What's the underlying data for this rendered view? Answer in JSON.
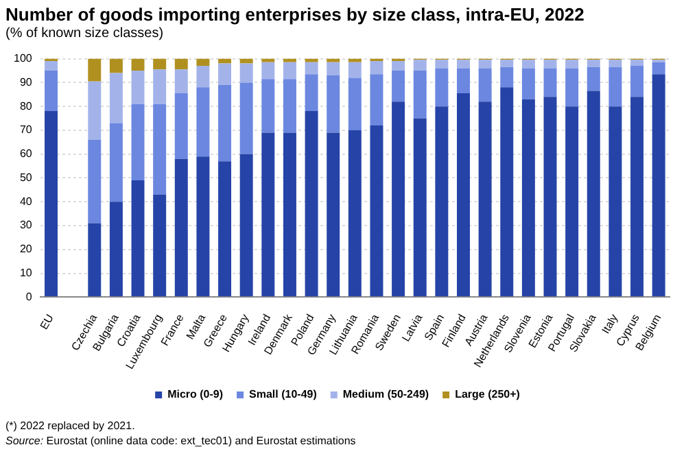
{
  "chart_data": {
    "type": "bar",
    "stacked": true,
    "title": "Number of goods importing enterprises by size class, intra-EU, 2022",
    "subtitle": "(% of known size classes)",
    "categories": [
      "EU",
      null,
      "Czechia",
      "Bulgaria",
      "Croatia",
      "Luxembourg",
      "France",
      "Malta",
      "Greece",
      "Hungary",
      "Ireland",
      "Denmark",
      "Poland",
      "Germany",
      "Lithuania",
      "Romania",
      "Sweden",
      "Latvia",
      "Spain",
      "Finland",
      "Austria",
      "Netherlands",
      "Slovenia",
      "Estonia",
      "Portugal",
      "Slovakia",
      "Italy",
      "Cyprus",
      "Belgium"
    ],
    "series": [
      {
        "name": "Micro (0-9)",
        "color": "#2644a7",
        "values": [
          78,
          null,
          31,
          40,
          49,
          43,
          58,
          59,
          57,
          60,
          69,
          69,
          78,
          69,
          70,
          72,
          82,
          75,
          80,
          85.5,
          82,
          88,
          83,
          84,
          80,
          86.5,
          80,
          84,
          93.5
        ]
      },
      {
        "name": "Small (10-49)",
        "color": "#6b87e0",
        "values": [
          17,
          null,
          35,
          33,
          32,
          38,
          27.5,
          29,
          32,
          30,
          22.5,
          22.5,
          15.5,
          24,
          22,
          21.5,
          13,
          20,
          16,
          10.5,
          14,
          8.5,
          13,
          12,
          16,
          10,
          16.5,
          13,
          5
        ]
      },
      {
        "name": "Medium (50-249)",
        "color": "#a3b3ea",
        "values": [
          4,
          null,
          24.5,
          21,
          14,
          14.5,
          10,
          9,
          9,
          8,
          7,
          7,
          5,
          5.5,
          6.5,
          5.5,
          4,
          4.5,
          3.5,
          3.5,
          3.5,
          3,
          3.5,
          3.5,
          3.5,
          3,
          3,
          2.5,
          1
        ]
      },
      {
        "name": "Large (250+)",
        "color": "#b09120",
        "values": [
          1,
          null,
          9.5,
          6,
          5,
          4.5,
          4.5,
          3,
          2,
          2,
          1.5,
          1.5,
          1.5,
          1.5,
          1.5,
          1,
          1,
          0.5,
          0.5,
          0.5,
          0.5,
          0.5,
          0.5,
          0.5,
          0.5,
          0.5,
          0.5,
          0.5,
          0.5
        ]
      }
    ],
    "ylim": [
      0,
      100
    ],
    "yticks": [
      0,
      10,
      20,
      30,
      40,
      50,
      60,
      70,
      80,
      90,
      100
    ],
    "grid": "y",
    "legend": "bottom",
    "annotations": [
      "(*) 2022 replaced by 2021.",
      "Source: Eurostat (online data code: ext_tec01) and Eurostat estimations"
    ]
  }
}
